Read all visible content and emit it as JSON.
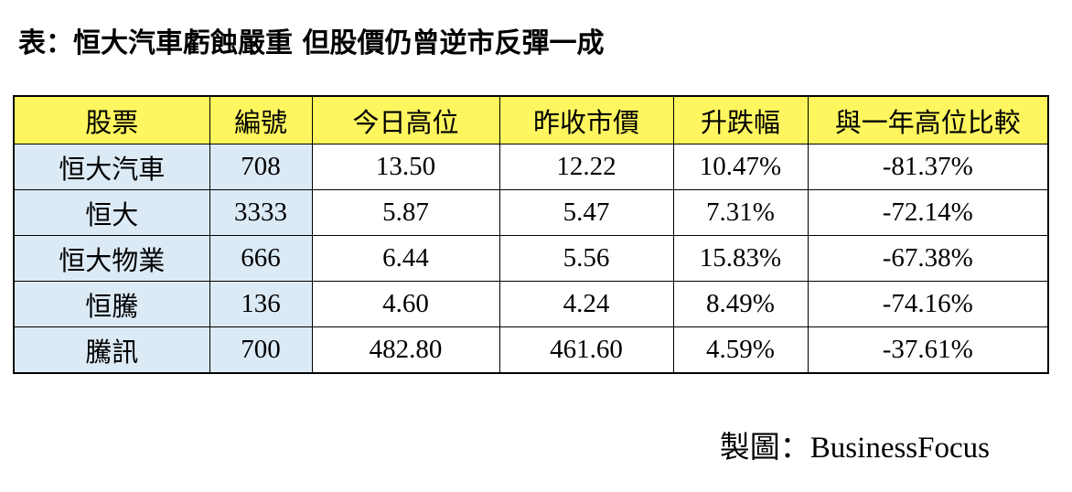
{
  "header": {
    "title": "表：恒大汽車虧蝕嚴重 但股價仍曾逆市反彈一成"
  },
  "table": {
    "columns": [
      "股票",
      "編號",
      "今日高位",
      "昨收市價",
      "升跌幅",
      "與一年高位比較"
    ],
    "rows": [
      [
        "恒大汽車",
        "708",
        "13.50",
        "12.22",
        "10.47%",
        "-81.37%"
      ],
      [
        "恒大",
        "3333",
        "5.87",
        "5.47",
        "7.31%",
        "-72.14%"
      ],
      [
        "恒大物業",
        "666",
        "6.44",
        "5.56",
        "15.83%",
        "-67.38%"
      ],
      [
        "恒騰",
        "136",
        "4.60",
        "4.24",
        "8.49%",
        "-74.16%"
      ],
      [
        "騰訊",
        "700",
        "482.80",
        "461.60",
        "4.59%",
        "-37.61%"
      ]
    ]
  },
  "footer": {
    "credit": "製圖：BusinessFocus"
  }
}
